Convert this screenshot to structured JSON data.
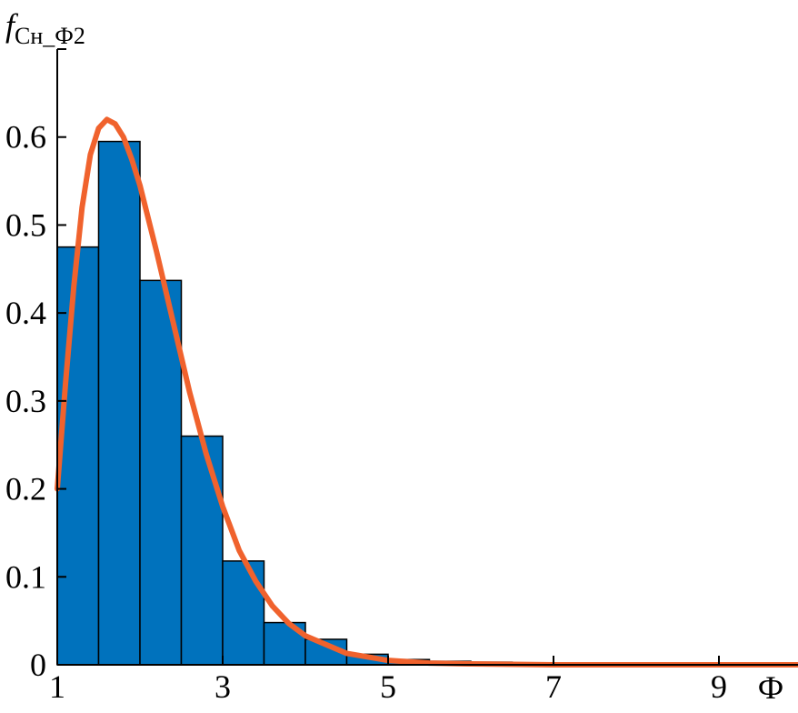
{
  "chart_data": {
    "type": "histogram",
    "y_label": "f",
    "y_label_sub": "Cн_Ф2",
    "x_label": "Ф",
    "bins": [
      1,
      1.5,
      2,
      2.5,
      3,
      3.5,
      4,
      4.5,
      5,
      5.5,
      6,
      6.5
    ],
    "values": [
      0.475,
      0.595,
      0.437,
      0.26,
      0.118,
      0.048,
      0.029,
      0.012,
      0.006,
      0.004,
      0.003
    ],
    "color": "#0072bd",
    "curve": {
      "color": "#f0622d",
      "x": [
        1,
        1.1,
        1.2,
        1.3,
        1.4,
        1.5,
        1.6,
        1.7,
        1.8,
        1.9,
        2.0,
        2.2,
        2.4,
        2.6,
        2.8,
        3.0,
        3.2,
        3.4,
        3.6,
        3.8,
        4.0,
        4.5,
        5,
        5.5,
        6,
        7,
        8,
        9,
        10
      ],
      "y": [
        0.2,
        0.32,
        0.43,
        0.52,
        0.58,
        0.61,
        0.62,
        0.615,
        0.6,
        0.575,
        0.545,
        0.47,
        0.39,
        0.31,
        0.24,
        0.18,
        0.13,
        0.095,
        0.067,
        0.047,
        0.033,
        0.013,
        0.005,
        0.002,
        0.001,
        0,
        0,
        0,
        0
      ]
    },
    "xlim": [
      1,
      10
    ],
    "ylim": [
      0,
      0.7
    ],
    "xticks": [
      1,
      3,
      5,
      7,
      9
    ],
    "yticks": [
      0,
      0.1,
      0.2,
      0.3,
      0.4,
      0.5,
      0.6
    ]
  }
}
